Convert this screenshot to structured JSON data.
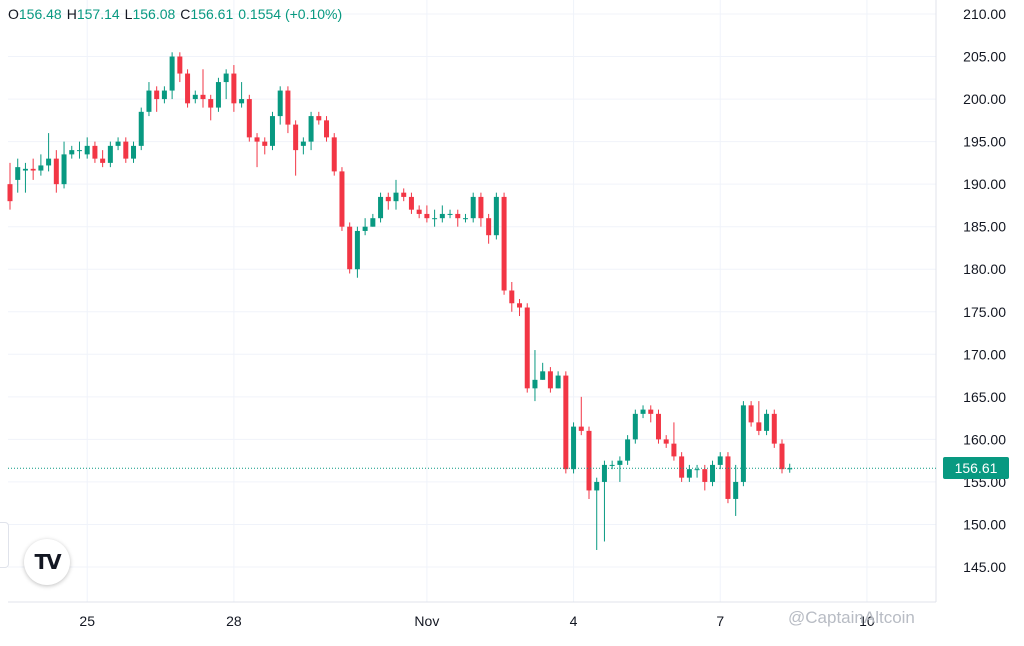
{
  "ohlc": {
    "o_label": "O",
    "o": "156.48",
    "h_label": "H",
    "h": "157.14",
    "l_label": "L",
    "l": "156.08",
    "c_label": "C",
    "c": "156.61",
    "change": "0.1554 (+0.10%)"
  },
  "last_price": "156.61",
  "watermark": "@CaptainAltcoin",
  "logo": "TV",
  "colors": {
    "up": "#089981",
    "down": "#f23645",
    "grid": "#f0f3fa",
    "text": "#131722"
  },
  "chart_data": {
    "type": "candlestick",
    "ylim": [
      141,
      211
    ],
    "y_ticks": [
      "210.00",
      "205.00",
      "200.00",
      "195.00",
      "190.00",
      "185.00",
      "180.00",
      "175.00",
      "170.00",
      "165.00",
      "160.00",
      "155.00",
      "150.00",
      "145.00"
    ],
    "x_ticks": [
      {
        "label": "25",
        "index": 10
      },
      {
        "label": "28",
        "index": 29
      },
      {
        "label": "Nov",
        "index": 54
      },
      {
        "label": "4",
        "index": 73
      },
      {
        "label": "7",
        "index": 92
      },
      {
        "label": "10",
        "index": 111
      }
    ],
    "last_price": 156.61,
    "candles": [
      [
        190,
        188,
        192.5,
        187
      ],
      [
        190.5,
        192,
        193,
        189
      ],
      [
        191.6,
        191.8,
        192.5,
        189
      ],
      [
        191.8,
        191.6,
        193,
        190.5
      ],
      [
        191.6,
        192.2,
        193.5,
        191
      ],
      [
        192.2,
        193,
        196,
        191.5
      ],
      [
        193,
        190,
        194,
        189
      ],
      [
        190,
        193.5,
        195,
        189.5
      ],
      [
        193.5,
        194,
        194.5,
        193
      ],
      [
        194,
        194,
        195,
        193
      ],
      [
        193.5,
        194.5,
        195.5,
        193
      ],
      [
        194.5,
        193,
        195,
        192.5
      ],
      [
        193,
        192.5,
        194,
        192
      ],
      [
        192.5,
        194.5,
        195,
        192
      ],
      [
        194.5,
        195,
        195.5,
        194
      ],
      [
        195,
        193,
        195.5,
        192.5
      ],
      [
        193,
        194.5,
        195,
        192.5
      ],
      [
        194.5,
        198.5,
        199,
        194
      ],
      [
        198.5,
        201,
        202,
        198
      ],
      [
        201,
        200,
        201.5,
        198.5
      ],
      [
        200,
        201,
        201.5,
        199.5
      ],
      [
        201,
        205,
        205.5,
        200
      ],
      [
        205,
        203,
        205.5,
        202
      ],
      [
        203,
        199.5,
        203.5,
        199
      ],
      [
        200,
        200.5,
        201,
        199.5
      ],
      [
        200.5,
        200,
        203.5,
        199
      ],
      [
        200,
        199,
        200.5,
        197.5
      ],
      [
        199,
        202,
        202.5,
        198.5
      ],
      [
        202,
        203,
        203.5,
        200
      ],
      [
        203,
        199.5,
        204,
        198.5
      ],
      [
        199.5,
        200,
        202,
        199
      ],
      [
        200,
        195.5,
        200.5,
        195
      ],
      [
        195.5,
        195,
        196,
        192
      ],
      [
        195,
        194.5,
        195.5,
        193.5
      ],
      [
        194.5,
        198,
        198.5,
        194
      ],
      [
        198,
        201,
        201.5,
        197
      ],
      [
        201,
        197,
        201.5,
        196
      ],
      [
        197,
        194,
        197.5,
        191
      ],
      [
        194.5,
        195,
        195.5,
        193.5
      ],
      [
        195,
        198,
        198.5,
        194
      ],
      [
        198,
        197.5,
        198.5,
        197
      ],
      [
        197.5,
        195.5,
        198,
        195
      ],
      [
        195.5,
        191.5,
        196,
        191
      ],
      [
        191.5,
        185,
        192,
        184.5
      ],
      [
        185,
        180,
        185.5,
        179.5
      ],
      [
        180,
        184.5,
        185,
        179
      ],
      [
        184.5,
        185,
        186,
        184
      ],
      [
        185,
        186,
        186.5,
        185
      ],
      [
        186,
        188.5,
        189,
        185.5
      ],
      [
        188.5,
        188,
        189,
        187
      ],
      [
        188,
        189,
        190.5,
        187
      ],
      [
        189,
        188.5,
        189.5,
        188
      ],
      [
        188.5,
        187,
        189,
        186.5
      ],
      [
        187,
        186.5,
        187.5,
        186
      ],
      [
        186.5,
        186,
        187.5,
        185.5
      ],
      [
        186,
        186,
        187,
        185
      ],
      [
        186,
        186.5,
        187.5,
        185.5
      ],
      [
        186.5,
        186.5,
        187,
        186
      ],
      [
        186.5,
        186,
        187,
        185
      ],
      [
        186,
        186,
        186.5,
        185.5
      ],
      [
        186,
        188.5,
        189,
        185.5
      ],
      [
        188.5,
        186,
        189,
        185
      ],
      [
        186,
        184,
        186.5,
        183
      ],
      [
        184,
        188.5,
        189,
        183.5
      ],
      [
        188.5,
        177.5,
        189,
        177
      ],
      [
        177.5,
        176,
        178.5,
        175
      ],
      [
        176,
        175.5,
        176.5,
        174.5
      ],
      [
        175.5,
        166,
        176,
        165.5
      ],
      [
        166,
        167,
        170.5,
        164.5
      ],
      [
        167,
        168,
        169,
        167
      ],
      [
        168,
        166,
        168.5,
        165.5
      ],
      [
        166,
        167.5,
        168,
        166
      ],
      [
        167.5,
        156.5,
        168,
        156
      ],
      [
        156.5,
        161.5,
        162,
        156
      ],
      [
        161.5,
        161,
        165,
        160.5
      ],
      [
        161,
        154,
        161.5,
        153
      ],
      [
        154,
        155,
        155.5,
        147
      ],
      [
        155,
        157,
        157.5,
        148
      ],
      [
        157,
        157,
        157.5,
        156.5
      ],
      [
        157,
        157.5,
        158,
        155
      ],
      [
        157.5,
        160,
        160.5,
        157
      ],
      [
        160,
        163,
        163.5,
        159.5
      ],
      [
        163,
        163.5,
        164,
        162.5
      ],
      [
        163.5,
        163,
        164,
        162
      ],
      [
        163,
        160,
        163.5,
        159.5
      ],
      [
        160,
        159.5,
        160.5,
        159
      ],
      [
        159.5,
        158,
        162,
        157.5
      ],
      [
        158,
        155.5,
        158.5,
        155
      ],
      [
        155.5,
        156.5,
        157,
        155
      ],
      [
        156.5,
        156.5,
        157,
        155.5
      ],
      [
        156.5,
        155,
        157,
        154
      ],
      [
        155,
        157,
        157.5,
        154.5
      ],
      [
        157,
        158,
        158.5,
        156.5
      ],
      [
        158,
        153,
        158.5,
        152.5
      ],
      [
        153,
        155,
        157,
        151
      ],
      [
        155,
        164,
        164.5,
        154.5
      ],
      [
        164,
        162,
        164.5,
        161.5
      ],
      [
        162,
        161,
        164.5,
        160.5
      ],
      [
        161,
        163,
        163.5,
        160.5
      ],
      [
        163,
        159.5,
        163.5,
        159
      ],
      [
        159.5,
        156.5,
        160,
        156
      ],
      [
        156.48,
        156.61,
        157.14,
        156.08
      ]
    ]
  }
}
